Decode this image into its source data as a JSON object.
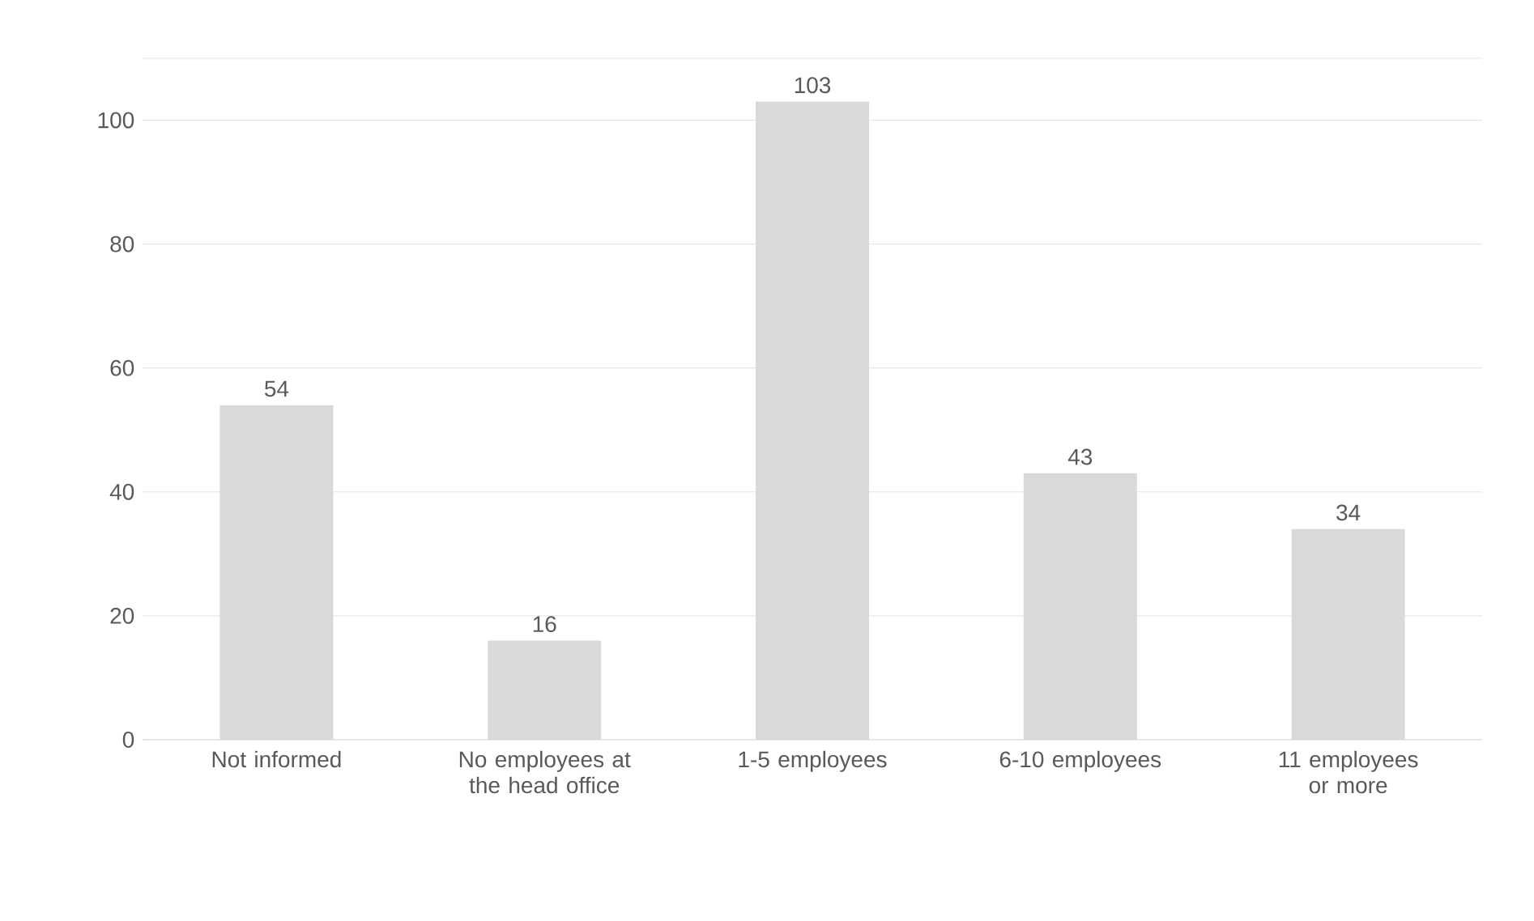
{
  "chart_data": {
    "type": "bar",
    "categories": [
      "Not informed",
      "No employees at the head office",
      "1-5 employees",
      "6-10 employees",
      "11 employees or more"
    ],
    "values": [
      54,
      16,
      103,
      43,
      34
    ],
    "color": "#d9d9d9",
    "ylim": [
      0,
      110
    ],
    "yticks": [
      0,
      20,
      40,
      60,
      80,
      100,
      {
        "value": 110,
        "label": null
      }
    ],
    "grid": "y",
    "data_labels": true
  }
}
